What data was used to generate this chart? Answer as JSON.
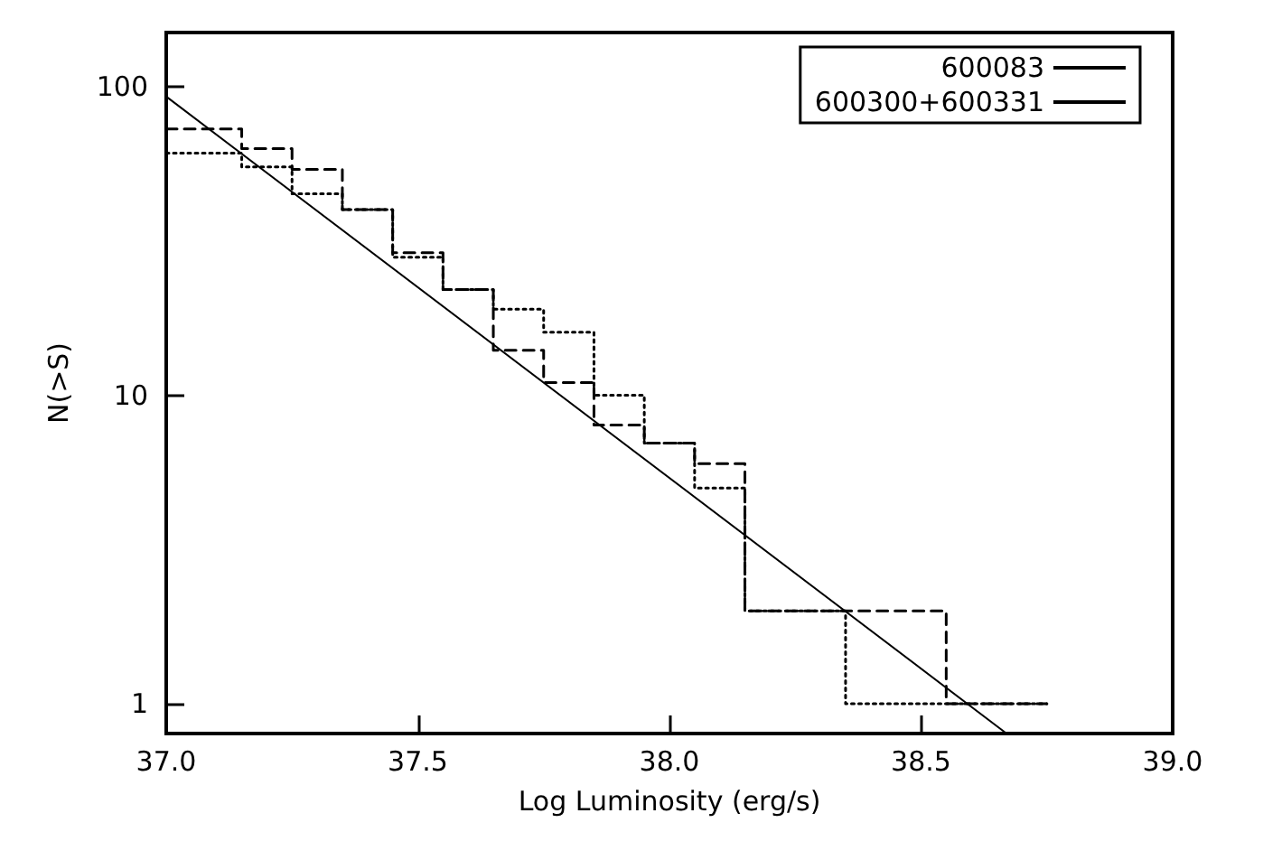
{
  "chart_data": {
    "type": "step",
    "xlabel": "Log Luminosity (erg/s)",
    "ylabel": "N(>S)",
    "xlim": [
      37.0,
      39.0
    ],
    "xticks": [
      {
        "value": 37,
        "label": "37.0"
      },
      37.5,
      {
        "value": 38,
        "label": "38.0"
      },
      38.5,
      {
        "value": 39,
        "label": "39.0"
      }
    ],
    "ylim": [
      0.8,
      150
    ],
    "yticks": [
      1,
      10,
      100
    ],
    "log": "y",
    "grid": false,
    "legend": "top right",
    "marker": "none",
    "series": [
      {
        "name": "600083",
        "color": "#000000",
        "line_style": "dashed",
        "x": [
          37.0,
          37.15,
          37.25,
          37.35,
          37.45,
          37.55,
          37.65,
          37.75,
          37.85,
          37.95,
          38.05,
          38.15,
          38.35,
          38.55,
          38.75
        ],
        "values": [
          73,
          63,
          54,
          40,
          29,
          22,
          14,
          11,
          8,
          7,
          6,
          2,
          2,
          1,
          1
        ]
      },
      {
        "name": "600300+600331",
        "color": "#000000",
        "line_style": "dotted",
        "x": [
          37.0,
          37.15,
          37.25,
          37.35,
          37.45,
          37.55,
          37.65,
          37.75,
          37.85,
          37.95,
          38.05,
          38.15,
          38.35,
          38.55,
          38.75
        ],
        "values": [
          61,
          55,
          45,
          40,
          28,
          22,
          19,
          16,
          10,
          7,
          5,
          2,
          1,
          1,
          1
        ]
      },
      {
        "type": "line",
        "color": "#000000",
        "line_style": "solid",
        "x": [
          37.0,
          38.67
        ],
        "values": [
          93,
          0.8
        ]
      }
    ]
  }
}
